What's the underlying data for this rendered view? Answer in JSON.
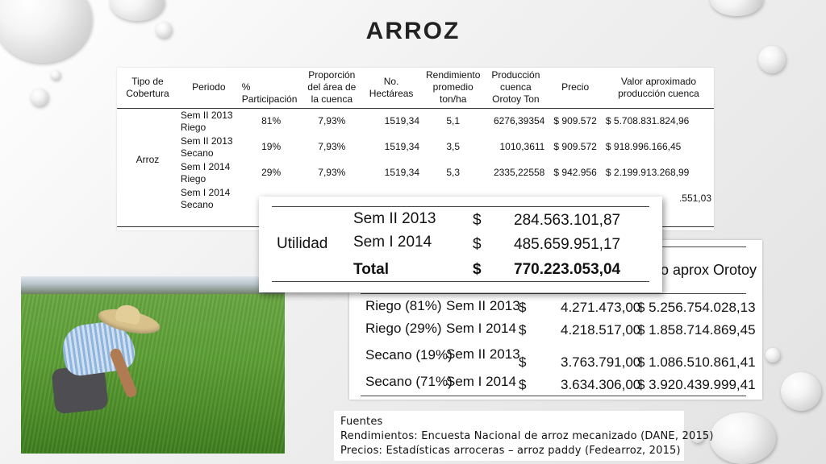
{
  "slide": {
    "title": "ARROZ"
  },
  "main_table": {
    "headers": {
      "cobertura": "Tipo de Cobertura",
      "periodo": "Periodo",
      "participacion": "% Participación",
      "proporcion": "Proporción del área de la cuenca",
      "hectareas": "No. Hectáreas",
      "rendimiento": "Rendimiento promedio ton/ha",
      "produccion": "Producción cuenca Orotoy Ton",
      "precio": "Precio",
      "valor": "Valor aproximado producción cuenca"
    },
    "cobertura": "Arroz",
    "rows": [
      {
        "periodo": "Sem II 2013 Riego",
        "participacion": "81%",
        "proporcion": "7,93%",
        "hectareas": "1519,34",
        "rendimiento": "5,1",
        "produccion": "6276,39354",
        "precio": "$ 909.572",
        "valor": "$ 5.708.831.824,96"
      },
      {
        "periodo": "Sem II 2013 Secano",
        "participacion": "19%",
        "proporcion": "7,93%",
        "hectareas": "1519,34",
        "rendimiento": "3,5",
        "produccion": "1010,3611",
        "precio": "$ 909.572",
        "valor": "$ 918.996.166,45"
      },
      {
        "periodo": "Sem I 2014 Riego",
        "participacion": "29%",
        "proporcion": "7,93%",
        "hectareas": "1519,34",
        "rendimiento": "5,3",
        "produccion": "2335,22558",
        "precio": "$ 942.956",
        "valor": "$ 2.199.913.268,99"
      },
      {
        "periodo": "Sem I 2014 Secano",
        "participacion": "",
        "proporcion": "",
        "hectareas": "",
        "rendimiento": "",
        "produccion": "",
        "precio": "",
        "valor": ".551,03"
      }
    ]
  },
  "utility": {
    "label": "Utilidad",
    "rows": [
      {
        "periodo": "Sem II 2013",
        "currency": "$",
        "valor": "284.563.101,87"
      },
      {
        "periodo": "Sem I 2014",
        "currency": "$",
        "valor": "485.659.951,17"
      }
    ],
    "total": {
      "label": "Total",
      "currency": "$",
      "valor": "770.223.053,04"
    }
  },
  "productivity": {
    "header_fragment": "o aprox Orotoy",
    "rows": [
      {
        "tipo": "Riego (81%)",
        "periodo": "Sem II 2013",
        "currency": "$",
        "costo": "4.271.473,00",
        "valor": "$ 5.256.754.028,13"
      },
      {
        "tipo": "Riego (29%)",
        "periodo": "Sem I 2014",
        "currency": "$",
        "costo": "4.218.517,00",
        "valor": "$ 1.858.714.869,45"
      },
      {
        "tipo": "Secano (19%)",
        "periodo": "Sem II 2013",
        "currency": "$",
        "costo": "3.763.791,00",
        "valor": "$ 1.086.510.861,41"
      },
      {
        "tipo": "Secano (71%)",
        "periodo": "Sem I 2014",
        "currency": "$",
        "costo": "3.634.306,00",
        "valor": "$ 3.920.439.999,41"
      }
    ]
  },
  "sources": {
    "heading": "Fuentes",
    "lines": [
      "Rendimientos: Encuesta Nacional de arroz mecanizado (DANE, 2015)",
      "Precios: Estadísticas arroceras – arroz paddy (Fedearroz, 2015)"
    ]
  }
}
